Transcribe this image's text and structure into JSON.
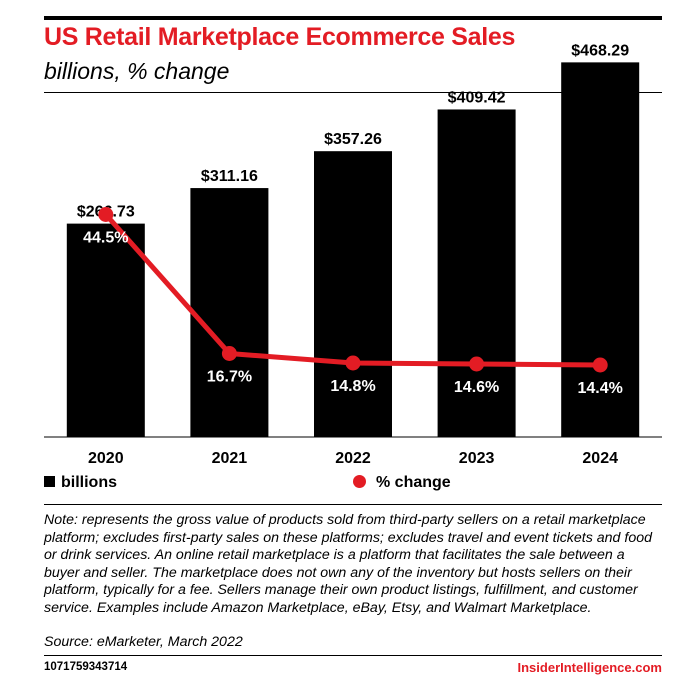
{
  "header": {
    "title": "US Retail Marketplace Ecommerce Sales",
    "subtitle": "billions, % change"
  },
  "chart_data": {
    "type": "bar",
    "categories": [
      "2020",
      "2021",
      "2022",
      "2023",
      "2024"
    ],
    "series": [
      {
        "name": "billions",
        "type": "bar",
        "values": [
          266.73,
          311.16,
          357.26,
          409.42,
          468.29
        ],
        "labels": [
          "$266.73",
          "$311.16",
          "$357.26",
          "$409.42",
          "$468.29"
        ],
        "color": "#000000"
      },
      {
        "name": "% change",
        "type": "line",
        "values": [
          44.5,
          16.7,
          14.8,
          14.6,
          14.4
        ],
        "labels": [
          "44.5%",
          "16.7%",
          "14.8%",
          "14.6%",
          "14.4%"
        ],
        "color": "#e31c24"
      }
    ],
    "ylim": [
      0,
      500
    ],
    "y2lim": [
      0,
      80
    ],
    "grid": false,
    "legend": "bottom"
  },
  "legend": {
    "bars_label": "billions",
    "line_label": "% change"
  },
  "footer": {
    "note": "Note: represents the gross value of products sold from third-party sellers on a retail marketplace platform; excludes first-party sales on these platforms; excludes travel and event tickets and food or drink services. An online retail marketplace is a platform that facilitates the sale between a buyer and seller. The marketplace does not own any of the inventory but hosts sellers on their platform, typically for a fee. Sellers manage their own product listings, fulfillment, and customer service. Examples include Amazon Marketplace, eBay, Etsy, and Walmart Marketplace.",
    "source": "Source: eMarketer, March 2022",
    "chart_id": "1071759343714",
    "brand": "InsiderIntelligence.com"
  }
}
